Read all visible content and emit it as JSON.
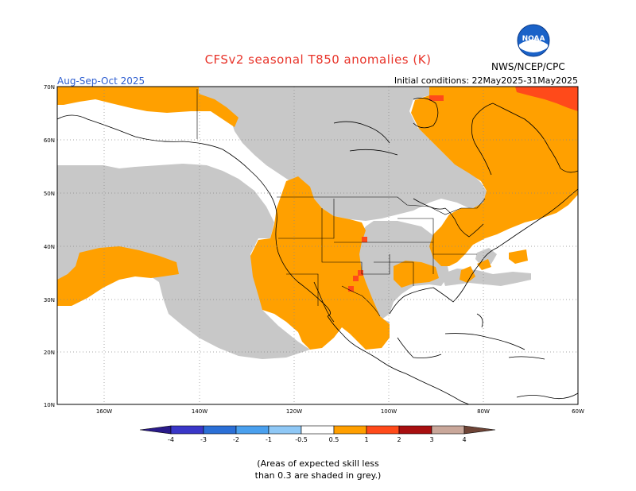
{
  "title": "CFSv2 seasonal T850 anomalies (K)",
  "season": "Aug-Sep-Oct 2025",
  "initial_conditions": "Initial conditions: 22May2025-31May2025",
  "agency": "NWS/NCEP/CPC",
  "logo_text": "NOAA",
  "lat_labels": [
    "70N",
    "60N",
    "50N",
    "40N",
    "30N",
    "20N",
    "10N"
  ],
  "lon_labels": [
    "160W",
    "140W",
    "120W",
    "100W",
    "80W",
    "60W"
  ],
  "legend": {
    "ticks": [
      "-4",
      "-3",
      "-2",
      "-1",
      "-0.5",
      "0.5",
      "1",
      "2",
      "3",
      "4"
    ],
    "colors": {
      "lt_m4": "#2a1a8a",
      "m4_m3": "#3a37c8",
      "m3_m2": "#2b6fd6",
      "m2_m1": "#4aa0ee",
      "m1_m05": "#8fc8f6",
      "m05_05": "#ffffff",
      "p05_1": "#ff9f00",
      "p1_2": "#ff4a1a",
      "p2_3": "#a80f10",
      "p3_4": "#c9a79a",
      "gt_4": "#6e4436"
    }
  },
  "colors": {
    "skill_grey": "#c8c8c8",
    "anomaly_orange": "#ffa000",
    "anomaly_red": "#ff4a1a",
    "title_red": "#e8342a",
    "season_blue": "#2f5fd0"
  },
  "note_line1": "(Areas of expected skill less",
  "note_line2": "than 0.3 are shaded in grey.)"
}
